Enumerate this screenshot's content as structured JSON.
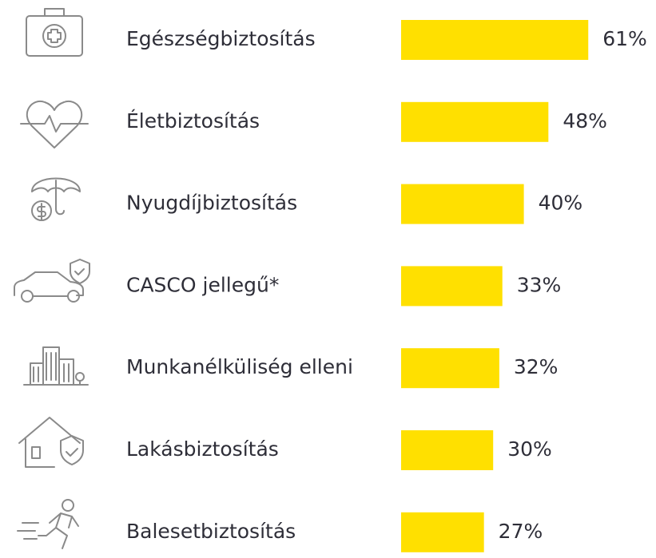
{
  "chart_data": {
    "type": "bar",
    "orientation": "horizontal",
    "categories": [
      "Egészségbiztosítás",
      "Életbiztosítás",
      "Nyugdíjbiztosítás",
      "CASCO jellegű*",
      "Munkanélküliség elleni",
      "Lakásbiztosítás",
      "Balesetbiztosítás"
    ],
    "values": [
      61,
      48,
      40,
      33,
      32,
      30,
      27
    ],
    "value_labels": [
      "61%",
      "48%",
      "40%",
      "33%",
      "32%",
      "30%",
      "27%"
    ],
    "color": "#ffe000"
  }
}
